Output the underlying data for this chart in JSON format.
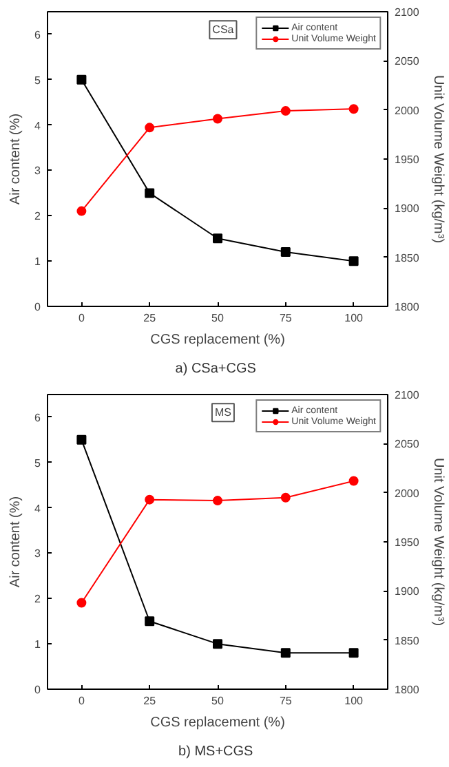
{
  "chart_data": [
    {
      "type": "line",
      "xlabel": "CGS replacement (%)",
      "ylabel": "Air content (%)",
      "y2label": "Unit Volume Weight (kg/m³)",
      "annotations": [
        "CSa",
        "a)  CSa+CGS"
      ],
      "x": [
        0,
        25,
        50,
        75,
        100
      ],
      "xlim": [
        -12.5,
        112.5
      ],
      "xticks": [
        0,
        25,
        50,
        75,
        100
      ],
      "ylim": [
        0,
        6.5
      ],
      "yticks": [
        0,
        1,
        2,
        3,
        4,
        5,
        6
      ],
      "y2lim": [
        1800,
        2100
      ],
      "y2ticks": [
        1800,
        1850,
        1900,
        1950,
        2000,
        2050,
        2100
      ],
      "grid": false,
      "legend": "top right",
      "line_style": "solid",
      "series": [
        {
          "name": "Air content",
          "color": "#000000",
          "marker": "square",
          "values": [
            5.0,
            2.5,
            1.5,
            1.2,
            1.0
          ]
        },
        {
          "name": "Unit Volume Weight",
          "color": "#ff0000",
          "marker": "circle",
          "axis": "y2",
          "values": [
            1897,
            1982,
            1991,
            1999,
            2001
          ]
        }
      ]
    },
    {
      "type": "line",
      "xlabel": "CGS replacement (%)",
      "ylabel": "Air content (%)",
      "y2label": "Unit Volume Weight (kg/m³)",
      "annotations": [
        "MS",
        "b)  MS+CGS"
      ],
      "x": [
        0,
        25,
        50,
        75,
        100
      ],
      "xlim": [
        -12.5,
        112.5
      ],
      "xticks": [
        0,
        25,
        50,
        75,
        100
      ],
      "ylim": [
        0,
        6.5
      ],
      "yticks": [
        0,
        1,
        2,
        3,
        4,
        5,
        6
      ],
      "y2lim": [
        1800,
        2100
      ],
      "y2ticks": [
        1800,
        1850,
        1900,
        1950,
        2000,
        2050,
        2100
      ],
      "grid": false,
      "legend": "top right",
      "line_style": "solid",
      "series": [
        {
          "name": "Air content",
          "color": "#000000",
          "marker": "square",
          "values": [
            5.5,
            1.5,
            1.0,
            0.8,
            0.8
          ]
        },
        {
          "name": "Unit Volume Weight",
          "color": "#ff0000",
          "marker": "circle",
          "axis": "y2",
          "values": [
            1888,
            1993,
            1992,
            1995,
            2012
          ]
        }
      ]
    }
  ]
}
